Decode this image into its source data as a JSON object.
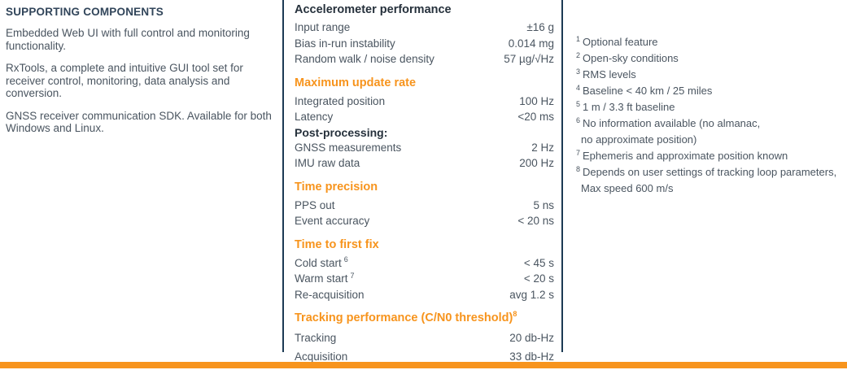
{
  "page": {
    "accent_orange": "#F7941D",
    "line_navy": "#1C3A54",
    "heading_navy": "#31455A",
    "body_text": "#4A5560"
  },
  "left_column": {
    "title": "SUPPORTING COMPONENTS",
    "paragraphs": [
      "Embedded Web UI with full control and monitoring functionality.",
      "RxTools, a complete and intuitive GUI tool set for receiver control, monitoring, data analysis and conversion.",
      "GNSS receiver communication SDK. Available for both Windows and Linux."
    ]
  },
  "specs": {
    "sections": [
      {
        "header": "Accelerometer performance",
        "rows": [
          {
            "label": "Input range",
            "value": "±16 g"
          },
          {
            "label": "Bias in-run instability",
            "value": "0.014 mg"
          },
          {
            "label": "Random walk / noise density",
            "value": "57 µg/√Hz"
          }
        ]
      },
      {
        "header": "Maximum update rate",
        "rows": [
          {
            "label": "Integrated position",
            "value": "100 Hz"
          },
          {
            "label": "Latency",
            "value": "<20 ms"
          }
        ],
        "subheader": "Post-processing:",
        "rows2": [
          {
            "label": "GNSS measurements",
            "value": "2 Hz"
          },
          {
            "label": "IMU raw data",
            "value": "200 Hz"
          }
        ]
      },
      {
        "header": "Time precision",
        "rows": [
          {
            "label": "PPS out",
            "value": "5 ns"
          },
          {
            "label": "Event accuracy",
            "value": "< 20 ns"
          }
        ]
      },
      {
        "header": "Time to first fix",
        "rows": [
          {
            "label": "Cold start",
            "sup": "6",
            "value": "< 45 s"
          },
          {
            "label": "Warm start",
            "sup": "7",
            "value": "< 20 s"
          },
          {
            "label": "Re-acquisition",
            "value": "avg 1.2 s"
          }
        ]
      },
      {
        "header": "Tracking performance (C/N0 threshold)",
        "header_sup": "8",
        "rows": [
          {
            "label": "Tracking",
            "value": "20 db-Hz"
          },
          {
            "label": "Acquisition",
            "value": "33 db-Hz"
          }
        ]
      }
    ]
  },
  "footnotes": [
    {
      "marker": "1",
      "text": "Optional feature"
    },
    {
      "marker": "2",
      "text": "Open-sky conditions"
    },
    {
      "marker": "3",
      "text": "RMS levels"
    },
    {
      "marker": "4",
      "text": "Baseline < 40 km / 25 miles"
    },
    {
      "marker": "5",
      "text": "1 m / 3.3 ft baseline"
    },
    {
      "marker": "6",
      "text": "No information available (no almanac,",
      "text2": "no approximate position)"
    },
    {
      "marker": "7",
      "text": "Ephemeris and approximate position known"
    },
    {
      "marker": "8",
      "text": "Depends on user settings of tracking loop parameters,",
      "text2": "Max speed 600 m/s"
    }
  ]
}
